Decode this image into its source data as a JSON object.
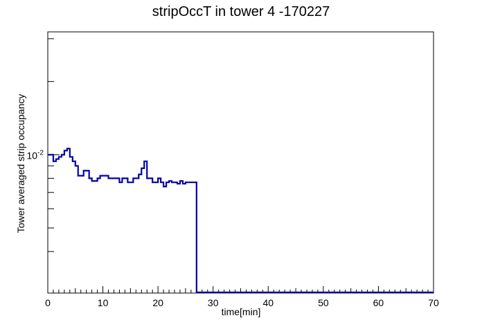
{
  "chart_data": {
    "type": "line",
    "title": "stripOccT in tower 4 -170227",
    "xlabel": "time[min]",
    "ylabel": "Tower averaged strip occupancy",
    "xlim": [
      0,
      70
    ],
    "ylim": [
      0.0027,
      0.032
    ],
    "yscale": "log",
    "x_ticks": [
      "0",
      "10",
      "20",
      "30",
      "40",
      "50",
      "60",
      "70"
    ],
    "y_tick_label": {
      "base": "10",
      "exponent": "-2"
    },
    "grid": false,
    "legend": "none",
    "line_color": "#0000a0",
    "bin_width_min": 0.5,
    "series": [
      {
        "values": [
          0.01,
          0.01,
          0.0094,
          0.0096,
          0.0098,
          0.01,
          0.0104,
          0.0106,
          0.0098,
          0.0094,
          0.009,
          0.0082,
          0.0082,
          0.0086,
          0.0086,
          0.008,
          0.0078,
          0.0078,
          0.008,
          0.0082,
          0.0082,
          0.0082,
          0.008,
          0.008,
          0.008,
          0.008,
          0.0077,
          0.008,
          0.008,
          0.0077,
          0.0077,
          0.008,
          0.008,
          0.0083,
          0.0088,
          0.0094,
          0.008,
          0.008,
          0.0077,
          0.0077,
          0.008,
          0.0077,
          0.0074,
          0.0077,
          0.0078,
          0.0077,
          0.0077,
          0.0076,
          0.0078,
          0.0076,
          0.0077,
          0.0077,
          0.0077,
          0.0077,
          0.0027,
          0.0027,
          0.0027,
          0.0027,
          0.0027,
          0.0027,
          0.0027,
          0.0027,
          0.0027,
          0.0027,
          0.0027,
          0.0027,
          0.0027,
          0.0027,
          0.0027,
          0.0027,
          0.0027,
          0.0027,
          0.0027,
          0.0027,
          0.0027,
          0.0027,
          0.0027,
          0.0027,
          0.0027,
          0.0027,
          0.0027,
          0.0027,
          0.0027,
          0.0027,
          0.0027,
          0.0027,
          0.0027,
          0.0027,
          0.0027,
          0.0027,
          0.0027,
          0.0027,
          0.0027,
          0.0027,
          0.0027,
          0.0027,
          0.0027,
          0.0027,
          0.0027,
          0.0027,
          0.0027,
          0.0027,
          0.0027,
          0.0027,
          0.0027,
          0.0027,
          0.0027,
          0.0027,
          0.0027,
          0.0027,
          0.0027,
          0.0027,
          0.0027,
          0.0027,
          0.0027,
          0.0027,
          0.0027,
          0.0027,
          0.0027,
          0.0027,
          0.0027,
          0.0027,
          0.0027,
          0.0027,
          0.0027,
          0.0027,
          0.0027,
          0.0027,
          0.0027,
          0.0027,
          0.0027,
          0.0027,
          0.0027,
          0.0027,
          0.0027,
          0.0027,
          0.0027,
          0.0027,
          0.0027,
          0.0027
        ]
      }
    ]
  }
}
